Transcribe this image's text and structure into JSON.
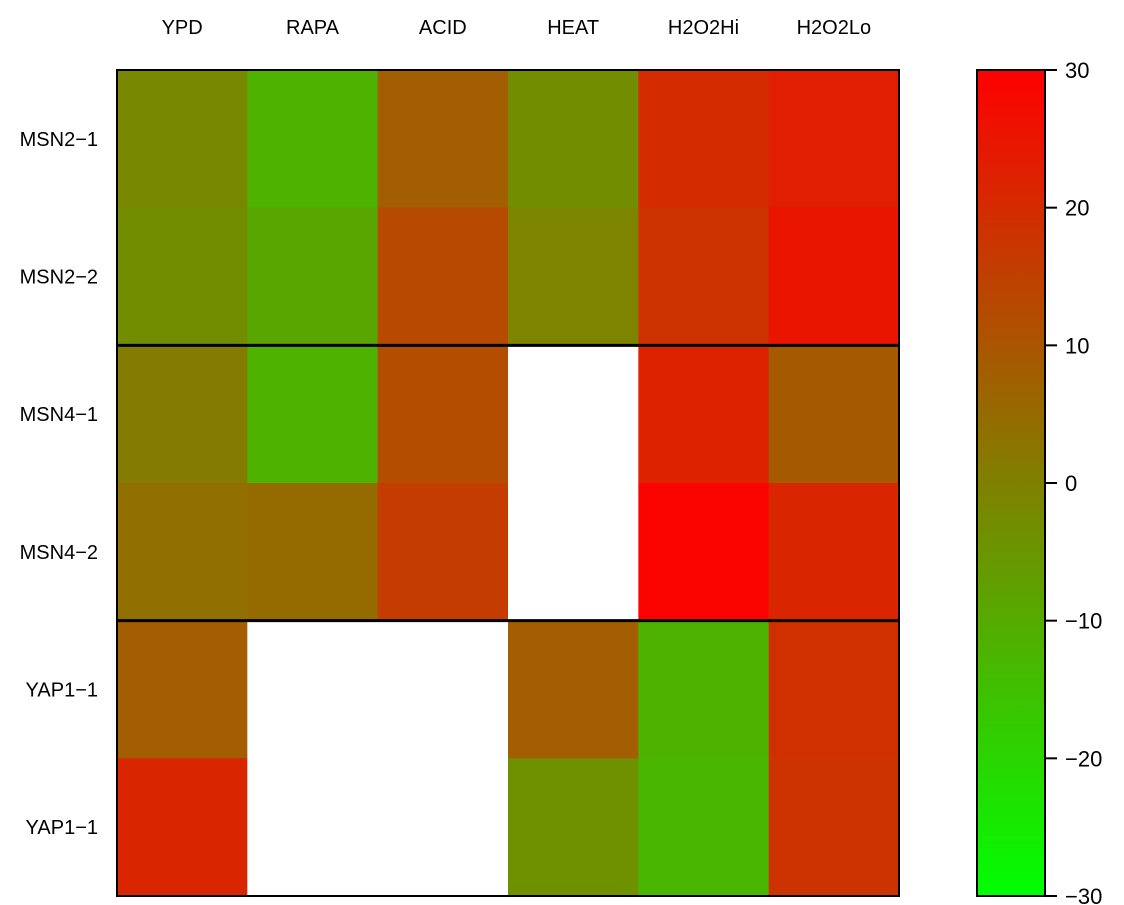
{
  "chart_data": {
    "type": "heatmap",
    "title": "",
    "xlabel": "",
    "ylabel": "",
    "columns": [
      "YPD",
      "RAPA",
      "ACID",
      "HEAT",
      "H2O2Hi",
      "H2O2Lo"
    ],
    "rows": [
      "MSN2−1",
      "MSN2−2",
      "MSN4−1",
      "MSN4−2",
      "YAP1−1",
      "YAP1−1"
    ],
    "values": [
      [
        -2,
        -12,
        8,
        -3,
        20,
        23
      ],
      [
        -3,
        -9,
        13,
        -1,
        18,
        25
      ],
      [
        1,
        -12,
        12,
        null,
        22,
        9
      ],
      [
        4,
        5,
        16,
        null,
        29,
        21
      ],
      [
        8,
        null,
        null,
        8,
        -12,
        19
      ],
      [
        21,
        null,
        null,
        -4,
        -13,
        18
      ]
    ],
    "group_separators_after_rows": [
      2,
      4
    ],
    "colorbar": {
      "range": [
        -30,
        30
      ],
      "ticks": [
        "30",
        "20",
        "10",
        "0",
        "−10",
        "−20",
        "−30"
      ],
      "tick_values": [
        30,
        20,
        10,
        0,
        -10,
        -20,
        -30
      ],
      "low_color": "#00ff00",
      "mid_color": "#808000",
      "high_color": "#ff0000"
    },
    "missing_color": "#ffffff",
    "grid": false,
    "legend_position": "right"
  }
}
